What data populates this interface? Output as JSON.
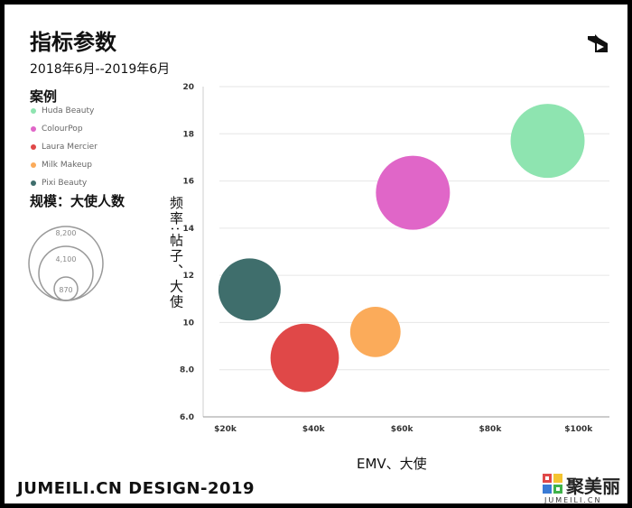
{
  "header": {
    "title": "指标参数",
    "subtitle": "2018年6月--2019年6月"
  },
  "legend": {
    "title": "案例",
    "items": [
      {
        "label": "Huda Beauty",
        "color": "#8ee4b0"
      },
      {
        "label": "ColourPop",
        "color": "#e066c8"
      },
      {
        "label": "Laura Mercier",
        "color": "#e04848"
      },
      {
        "label": "Milk Makeup",
        "color": "#fbab5a"
      },
      {
        "label": "Pixi Beauty",
        "color": "#3f6e6c"
      }
    ]
  },
  "size_legend": {
    "title": "规模：大使人数",
    "values": [
      "8,200",
      "4,100",
      "870"
    ]
  },
  "axes": {
    "ylabel": "频率:帖子、大使",
    "xlabel": "EMV、大使"
  },
  "footer": {
    "text": "JUMEILI.CN DESIGN-2019",
    "brand_cn": "聚美丽",
    "brand_en": "JUMEILI.CN"
  },
  "chart_data": {
    "type": "scatter",
    "x_ticks": [
      "$20k",
      "$40k",
      "$60k",
      "$80k",
      "$100k"
    ],
    "x_tick_values": [
      20000,
      40000,
      60000,
      80000,
      100000
    ],
    "y_ticks": [
      "20",
      "18",
      "16",
      "14",
      "12",
      "10",
      "8.0",
      "6.0"
    ],
    "y_tick_values": [
      20,
      18,
      16,
      14,
      12,
      10,
      8,
      6
    ],
    "xlim": [
      15000,
      107000
    ],
    "ylim": [
      6,
      20
    ],
    "grid": true,
    "points": [
      {
        "x": 93000,
        "y": 17.7,
        "size": 8200,
        "color": "#8ee4b0"
      },
      {
        "x": 62500,
        "y": 15.5,
        "size": 8200,
        "color": "#e066c8"
      },
      {
        "x": 38000,
        "y": 8.5,
        "size": 7000,
        "color": "#e04848"
      },
      {
        "x": 54000,
        "y": 9.6,
        "size": 3800,
        "color": "#fbab5a"
      },
      {
        "x": 25500,
        "y": 11.4,
        "size": 5800,
        "color": "#3f6e6c"
      }
    ]
  }
}
